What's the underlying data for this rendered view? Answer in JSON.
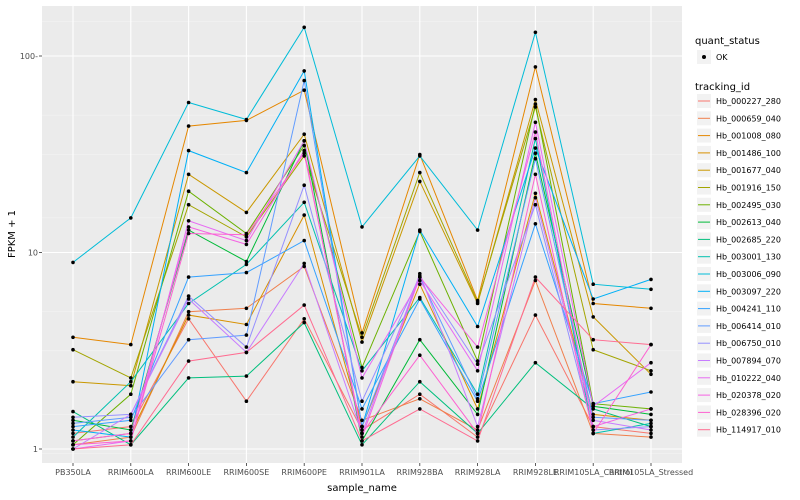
{
  "chart_data": {
    "type": "line",
    "xlabel": "sample_name",
    "ylabel": "FPKM + 1",
    "yscale": "log10",
    "ylim": [
      0.85,
      200
    ],
    "y_ticks": [
      1,
      10,
      100
    ],
    "y_tick_labels": [
      "1",
      "10",
      "100-"
    ],
    "grid": true,
    "categories": [
      "PB350LA",
      "RRIM600LA",
      "RRIM600LE",
      "RRIM600SE",
      "RRIM600PE",
      "RRIM901LA",
      "RRIM928BA",
      "RRIM928LA",
      "RRIM928LE",
      "RRIM105LA_Control",
      "RRIM105LA_Stressed"
    ],
    "legend": {
      "placement": "right",
      "shape_title": "quant_status",
      "shape_entries": [
        "OK"
      ],
      "color_title": "tracking_id"
    },
    "series": [
      {
        "name": "Hb_000227_280",
        "color": "#F8766D",
        "values": [
          1.2,
          1.3,
          4.6,
          1.75,
          4.6,
          1.25,
          1.9,
          1.15,
          4.8,
          1.3,
          1.2
        ]
      },
      {
        "name": "Hb_000659_040",
        "color": "#F07F4C",
        "values": [
          1.05,
          1.15,
          5.0,
          5.2,
          8.5,
          1.4,
          1.8,
          1.25,
          7.2,
          1.2,
          1.15
        ]
      },
      {
        "name": "Hb_001008_080",
        "color": "#E58700",
        "values": [
          3.7,
          3.4,
          44,
          47,
          67,
          3.9,
          31.5,
          5.7,
          88,
          5.5,
          5.2
        ]
      },
      {
        "name": "Hb_001486_100",
        "color": "#D89000",
        "values": [
          1.1,
          1.2,
          4.8,
          4.3,
          15.5,
          1.3,
          6.9,
          1.6,
          20,
          1.5,
          1.4
        ]
      },
      {
        "name": "Hb_001677_040",
        "color": "#C99800",
        "values": [
          2.2,
          2.1,
          25,
          16,
          40,
          3.5,
          23,
          5.5,
          60,
          4.7,
          2.4
        ]
      },
      {
        "name": "Hb_001916_150",
        "color": "#A3A500",
        "values": [
          3.2,
          2.3,
          17.5,
          12,
          31,
          3.7,
          25.5,
          5.6,
          55,
          3.2,
          2.5
        ]
      },
      {
        "name": "Hb_002495_030",
        "color": "#6BB100",
        "values": [
          1.05,
          1.9,
          20.5,
          12.5,
          35,
          2.6,
          12.8,
          2.8,
          57,
          1.7,
          1.6
        ]
      },
      {
        "name": "Hb_002613_040",
        "color": "#00BA38",
        "values": [
          1.4,
          1.25,
          13,
          9,
          37,
          1.1,
          3.6,
          1.5,
          32,
          1.65,
          1.5
        ]
      },
      {
        "name": "Hb_002685_220",
        "color": "#00BF7D",
        "values": [
          1.55,
          1.05,
          2.3,
          2.35,
          4.4,
          1.05,
          2.2,
          1.2,
          2.75,
          1.6,
          1.3
        ]
      },
      {
        "name": "Hb_003001_130",
        "color": "#00C0AF",
        "values": [
          1.15,
          2.2,
          5.5,
          8.7,
          18,
          2.5,
          5.9,
          1.9,
          38,
          1.2,
          1.35
        ]
      },
      {
        "name": "Hb_003006_090",
        "color": "#00BCD8",
        "values": [
          8.9,
          15,
          58,
          47.5,
          140,
          13.5,
          31,
          13,
          132,
          6.9,
          6.5
        ]
      },
      {
        "name": "Hb_003097_220",
        "color": "#00B0F6",
        "values": [
          1.25,
          1.15,
          33,
          25.5,
          84,
          1.3,
          13,
          4.2,
          34,
          5.8,
          7.3
        ]
      },
      {
        "name": "Hb_004241_110",
        "color": "#35A2FF",
        "values": [
          1.3,
          1.4,
          7.5,
          7.9,
          11.5,
          1.6,
          5.8,
          1.75,
          14,
          1.7,
          1.95
        ]
      },
      {
        "name": "Hb_006414_010",
        "color": "#619CFF",
        "values": [
          1.35,
          1.45,
          3.6,
          3.8,
          75,
          1.3,
          7.5,
          1.8,
          30,
          1.45,
          1.4
        ]
      },
      {
        "name": "Hb_006750_010",
        "color": "#9590FF",
        "values": [
          1.45,
          1.5,
          6.0,
          3.3,
          22,
          1.75,
          7.6,
          2.7,
          17.5,
          1.25,
          1.3
        ]
      },
      {
        "name": "Hb_007894_070",
        "color": "#C77CFF",
        "values": [
          1.0,
          1.5,
          5.8,
          3.1,
          8.8,
          1.2,
          7.8,
          1.3,
          19,
          1.4,
          1.25
        ]
      },
      {
        "name": "Hb_010222_040",
        "color": "#E76BF3",
        "values": [
          1.0,
          1.1,
          14.5,
          11.5,
          37,
          2.3,
          7.2,
          2.5,
          46,
          1.65,
          2.75
        ]
      },
      {
        "name": "Hb_020378_020",
        "color": "#F563E3",
        "values": [
          1.1,
          1.2,
          13.5,
          11,
          33,
          1.15,
          7.5,
          3.3,
          41,
          1.3,
          1.6
        ]
      },
      {
        "name": "Hb_028396_020",
        "color": "#FD61D1",
        "values": [
          1.05,
          1.1,
          12.5,
          12.3,
          32,
          1.2,
          3.0,
          1.2,
          25,
          1.2,
          3.4
        ]
      },
      {
        "name": "Hb_114917_010",
        "color": "#FF6C91",
        "values": [
          1.0,
          1.05,
          2.8,
          3.1,
          5.4,
          1.1,
          1.6,
          1.1,
          7.5,
          3.6,
          3.4
        ]
      }
    ]
  }
}
